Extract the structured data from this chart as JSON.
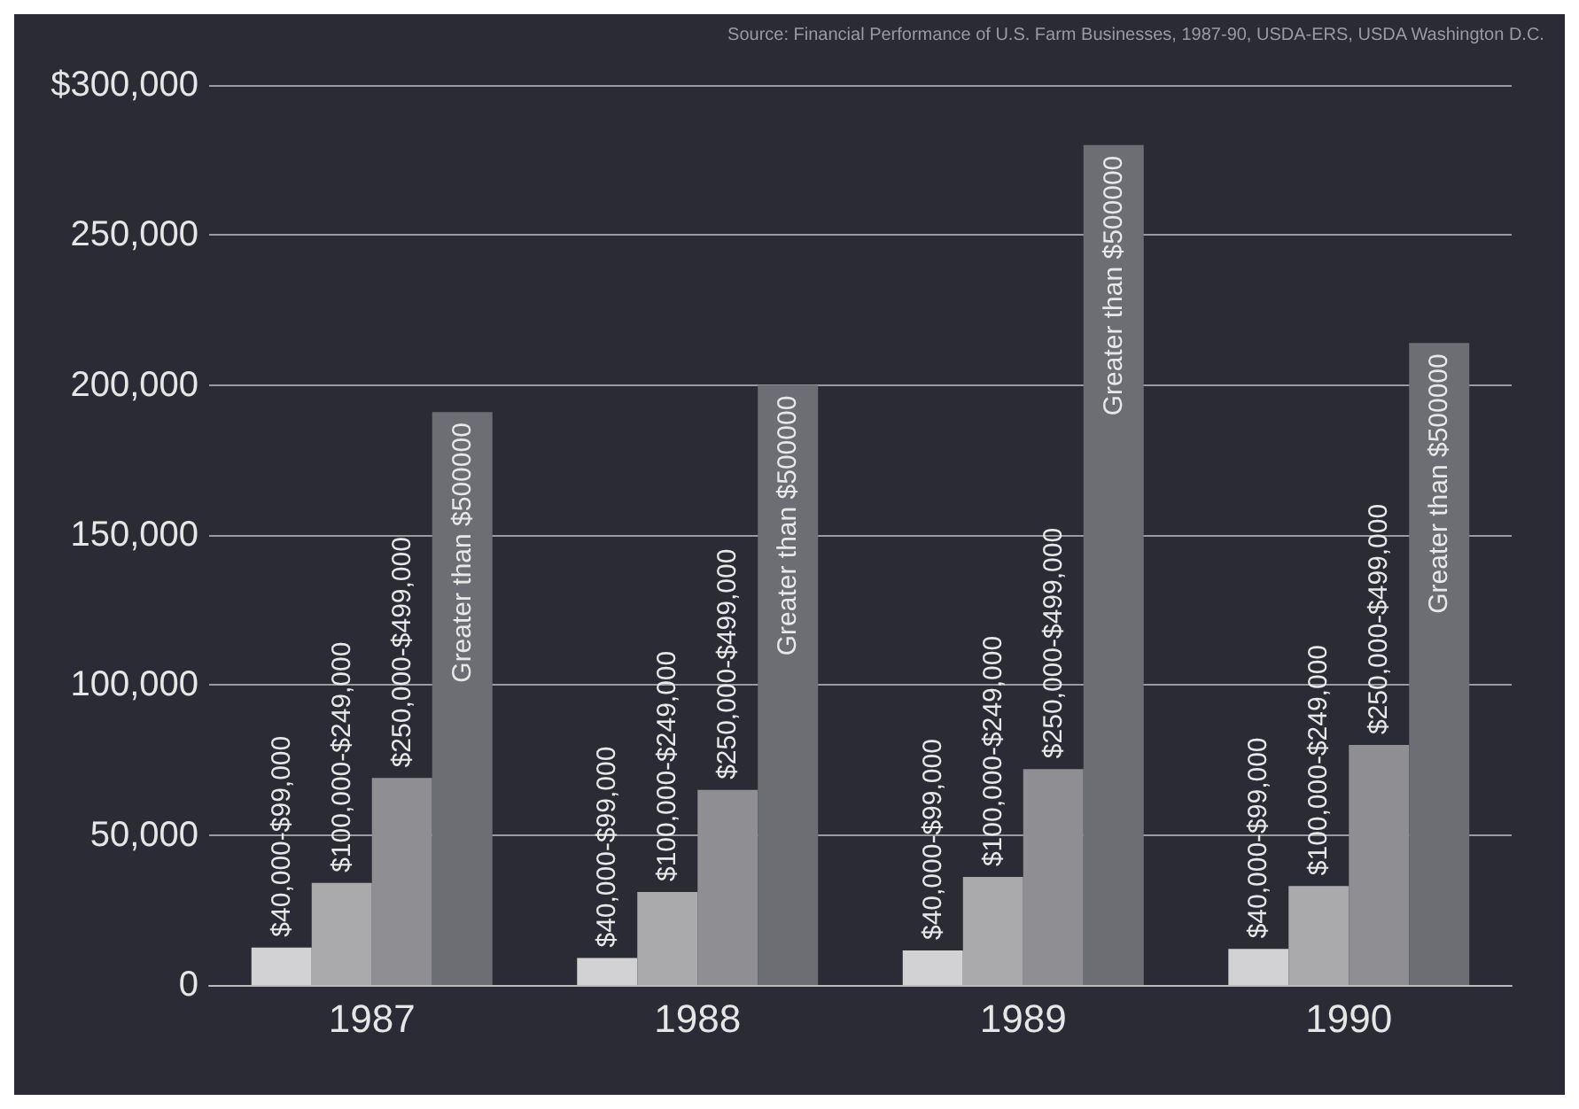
{
  "chart_data": {
    "type": "bar",
    "categories": [
      "1987",
      "1988",
      "1989",
      "1990"
    ],
    "series": [
      {
        "name": "$40,000-$99,000",
        "color": "#d2d2d4",
        "values": [
          12500,
          9000,
          11500,
          12000
        ]
      },
      {
        "name": "$100,000-$249,000",
        "color": "#aaaaad",
        "values": [
          34000,
          31000,
          36000,
          33000
        ]
      },
      {
        "name": "$250,000-$499,000",
        "color": "#8e8e93",
        "values": [
          69000,
          65000,
          72000,
          80000
        ]
      },
      {
        "name": "Greater than $500000",
        "color": "#6d6e74",
        "values": [
          191000,
          200000,
          280000,
          214000
        ]
      }
    ],
    "ylim": [
      0,
      300000
    ],
    "yticks": [
      {
        "value": 0,
        "label": "0"
      },
      {
        "value": 50000,
        "label": "50,000"
      },
      {
        "value": 100000,
        "label": "100,000"
      },
      {
        "value": 150000,
        "label": "150,000"
      },
      {
        "value": 200000,
        "label": "200,000"
      },
      {
        "value": 250000,
        "label": "250,000"
      },
      {
        "value": 300000,
        "label": "$300,000"
      }
    ],
    "grid": "y",
    "legend": false,
    "annotations": [
      "Source: Financial Performance of U.S. Farm Businesses, 1987-90, USDA-ERS, USDA Washington D.C."
    ]
  }
}
